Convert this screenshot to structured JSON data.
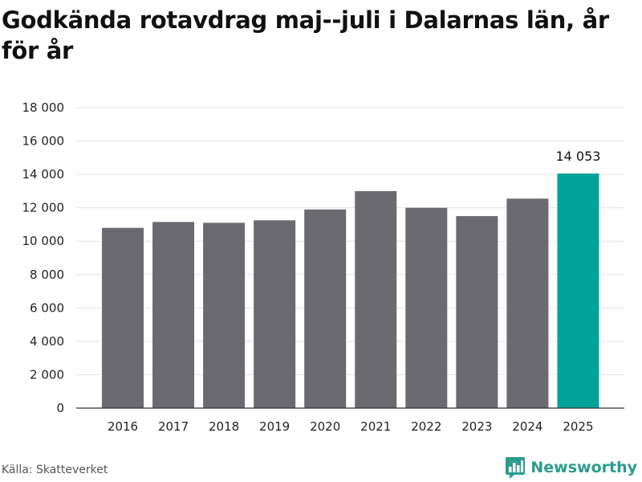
{
  "title": "Godkända rotavdrag maj--juli i Dalarnas län, år för år",
  "source": "Källa: Skatteverket",
  "brand": {
    "name": "Newsworthy",
    "icon": "bar-chart-logo-icon",
    "color": "#2a9c8e"
  },
  "colors": {
    "bar": "#6b6a70",
    "highlight": "#00a39a",
    "grid": "#e3e3e3",
    "axis": "#333333"
  },
  "chart_data": {
    "type": "bar",
    "title": "Godkända rotavdrag maj--juli i Dalarnas län, år för år",
    "categories": [
      "2016",
      "2017",
      "2018",
      "2019",
      "2020",
      "2021",
      "2022",
      "2023",
      "2024",
      "2025"
    ],
    "values": [
      10800,
      11150,
      11100,
      11250,
      11900,
      13000,
      12000,
      11500,
      12550,
      14053
    ],
    "highlight_index": 9,
    "data_labels": [
      {
        "index": 9,
        "text": "14 053"
      }
    ],
    "ylim": [
      0,
      18000
    ],
    "yticks": [
      0,
      2000,
      4000,
      6000,
      8000,
      10000,
      12000,
      14000,
      16000,
      18000
    ],
    "ytick_labels": [
      "0",
      "2 000",
      "4 000",
      "6 000",
      "8 000",
      "10 000",
      "12 000",
      "14 000",
      "16 000",
      "18 000"
    ],
    "xlabel": "",
    "ylabel": "",
    "grid": true
  }
}
